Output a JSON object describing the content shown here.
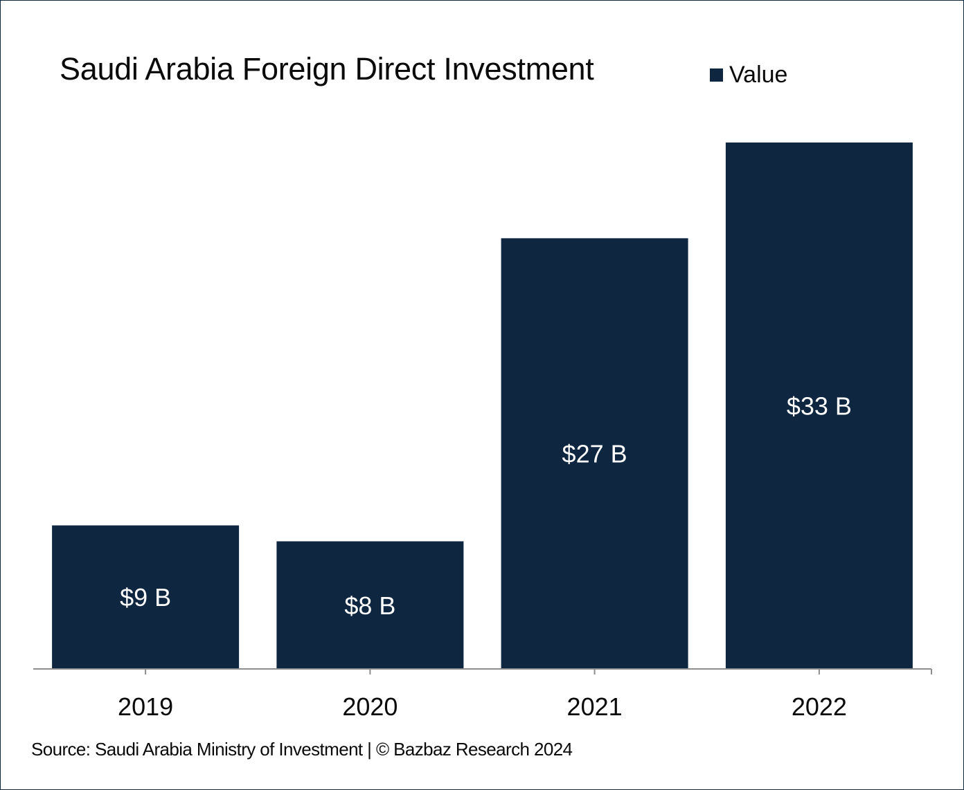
{
  "chart_data": {
    "type": "bar",
    "title": "Saudi Arabia Foreign Direct Investment",
    "categories": [
      "2019",
      "2020",
      "2021",
      "2022"
    ],
    "series": [
      {
        "name": "Value",
        "values": [
          9,
          8,
          27,
          33
        ],
        "labels": [
          "$9 B",
          "$8 B",
          "$27 B",
          "$33 B"
        ]
      }
    ],
    "xlabel": "",
    "ylabel": "",
    "ylim": [
      0,
      33
    ],
    "grid": false,
    "legend": "top-right",
    "bar_color": "#0f2640",
    "axis_color": "#8c8c8c"
  },
  "footer": {
    "source": "Source: Saudi Arabia Ministry of Investment | © Bazbaz Research 2024"
  }
}
